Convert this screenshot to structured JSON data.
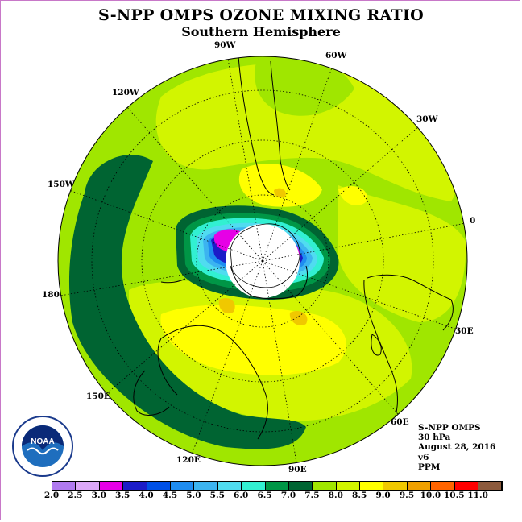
{
  "title": "S-NPP OMPS OZONE MIXING RATIO",
  "subtitle": "Southern Hemisphere",
  "longitude_labels": {
    "w90": "90W",
    "w60": "60W",
    "w30": "30W",
    "e0": "0",
    "e30": "30E",
    "e60": "60E",
    "e90": "90E",
    "e120": "120E",
    "e150": "150E",
    "e180": "180",
    "w150": "150W",
    "w120": "120W"
  },
  "info": {
    "instrument": "S-NPP OMPS",
    "level": "30 hPa",
    "date": "August 28, 2016",
    "version": "v6",
    "units": "PPM"
  },
  "logo": {
    "text": "NOAA",
    "icon": "noaa-logo"
  },
  "colorbar": {
    "ticks": [
      "2.0",
      "2.5",
      "3.0",
      "3.5",
      "4.0",
      "4.5",
      "5.0",
      "5.5",
      "6.0",
      "6.5",
      "7.0",
      "7.5",
      "8.0",
      "8.5",
      "9.0",
      "9.5",
      "10.0",
      "10.5",
      "11.0"
    ],
    "colors": [
      "#b07af0",
      "#dca8f8",
      "#e600e6",
      "#1c1cc8",
      "#0050e6",
      "#1e8cf0",
      "#3cb4f0",
      "#50dcf0",
      "#32f0d2",
      "#009646",
      "#006432",
      "#a0e600",
      "#d2f500",
      "#ffff00",
      "#f0c800",
      "#f0a000",
      "#ff6400",
      "#ff0000",
      "#8c5a3c"
    ]
  },
  "colors": {
    "ocean_base": "#a0e600",
    "low_ppm_band": "#006432"
  }
}
